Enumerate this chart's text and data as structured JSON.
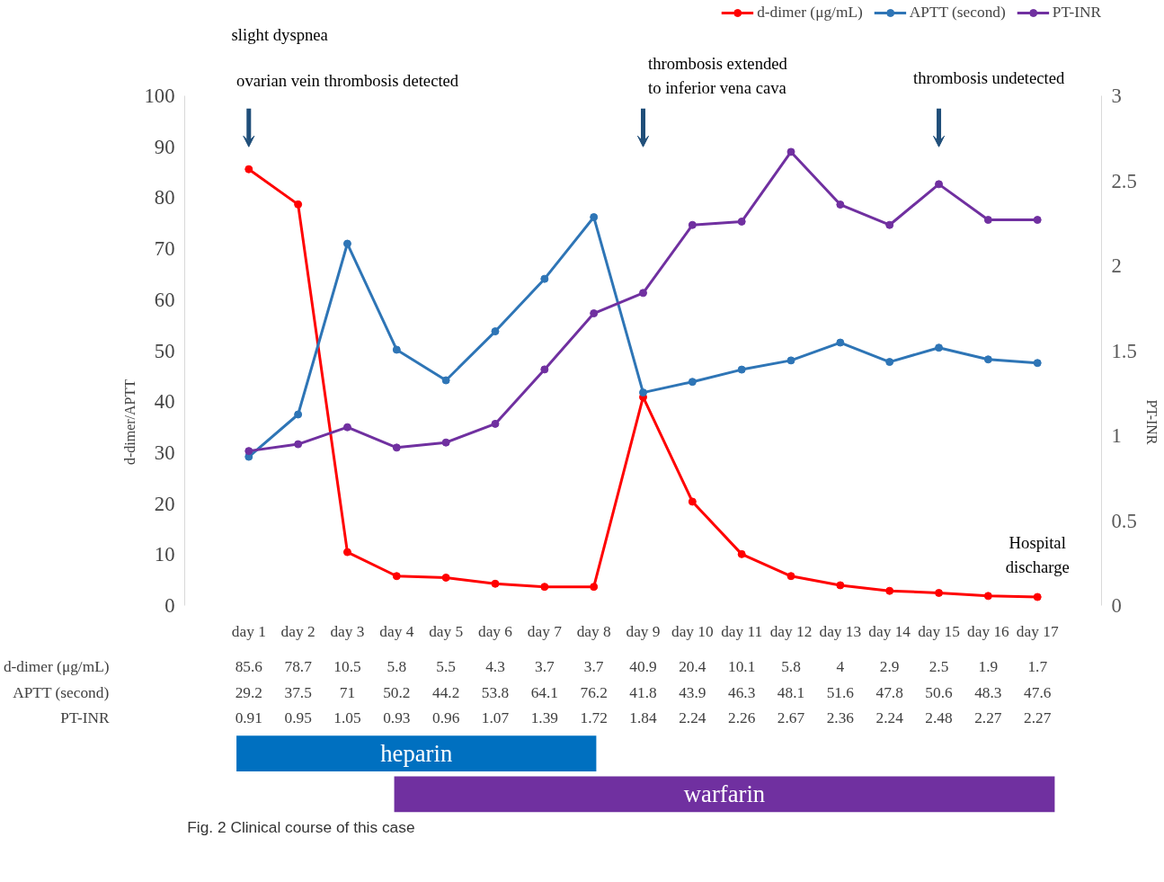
{
  "chart_data": {
    "type": "line",
    "ylabel": "d-dimer/APTT",
    "y2label": "PT-INR",
    "categories": [
      "day 1",
      "day 2",
      "day 3",
      "day 4",
      "day 5",
      "day 6",
      "day 7",
      "day 8",
      "day 9",
      "day 10",
      "day 11",
      "day 12",
      "day 13",
      "day 14",
      "day 15",
      "day 16",
      "day 17"
    ],
    "series": [
      {
        "name": "d-dimer (μg/mL)",
        "color": "#ff0000",
        "values": [
          85.6,
          78.7,
          10.5,
          5.8,
          5.5,
          4.3,
          3.7,
          3.7,
          40.9,
          20.4,
          10.1,
          5.8,
          4,
          2.9,
          2.5,
          1.9,
          1.7
        ]
      },
      {
        "name": "APTT (second)",
        "color": "#2e75b6",
        "values": [
          29.2,
          37.5,
          71,
          50.2,
          44.2,
          53.8,
          64.1,
          76.2,
          41.8,
          43.9,
          46.3,
          48.1,
          51.6,
          47.8,
          50.6,
          48.3,
          47.6
        ]
      },
      {
        "name": "PT-INR",
        "color": "#7030a0",
        "axis": "y2",
        "values": [
          0.91,
          0.95,
          1.05,
          0.93,
          0.96,
          1.07,
          1.39,
          1.72,
          1.84,
          2.24,
          2.26,
          2.67,
          2.36,
          2.24,
          2.48,
          2.27,
          2.27
        ]
      }
    ],
    "ylim": [
      0,
      100
    ],
    "yticks": [
      0,
      10,
      20,
      30,
      40,
      50,
      60,
      70,
      80,
      90,
      100
    ],
    "y2lim": [
      0,
      3
    ],
    "y2ticks": [
      0,
      0.5,
      1,
      1.5,
      2,
      2.5,
      3
    ],
    "marker": "circle",
    "line_style": "solid",
    "legend": "top right",
    "data_labels": true,
    "annotations": [
      "slight dyspnea",
      "ovarian vein thrombosis detected",
      "thrombosis extended\nto inferior vena cava",
      "thrombosis undetected",
      "Hospital\ndischarge",
      "heparin",
      "warfarin",
      "Fig. 2 Clinical course of this case"
    ]
  }
}
